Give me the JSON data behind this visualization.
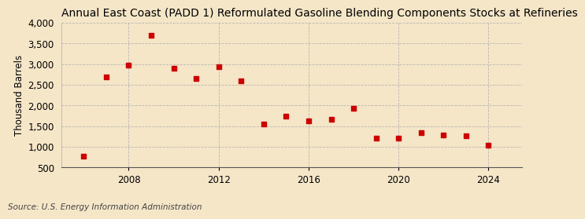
{
  "title": "Annual East Coast (PADD 1) Reformulated Gasoline Blending Components Stocks at Refineries",
  "ylabel": "Thousand Barrels",
  "source": "Source: U.S. Energy Information Administration",
  "background_color": "#f5e6c8",
  "years": [
    2006,
    2007,
    2008,
    2009,
    2010,
    2011,
    2012,
    2013,
    2014,
    2015,
    2016,
    2017,
    2018,
    2019,
    2020,
    2021,
    2022,
    2023,
    2024
  ],
  "values": [
    775,
    2700,
    2980,
    3700,
    2900,
    2650,
    2930,
    2590,
    1560,
    1740,
    1630,
    1660,
    1940,
    1210,
    1210,
    1350,
    1280,
    1270,
    1040
  ],
  "ylim": [
    500,
    4000
  ],
  "yticks": [
    500,
    1000,
    1500,
    2000,
    2500,
    3000,
    3500,
    4000
  ],
  "xticks": [
    2008,
    2012,
    2016,
    2020,
    2024
  ],
  "xlim": [
    2005.0,
    2025.5
  ],
  "marker_color": "#cc0000",
  "marker_size": 5,
  "grid_color": "#aaaaaa",
  "title_fontsize": 10,
  "axis_fontsize": 8.5,
  "source_fontsize": 7.5
}
